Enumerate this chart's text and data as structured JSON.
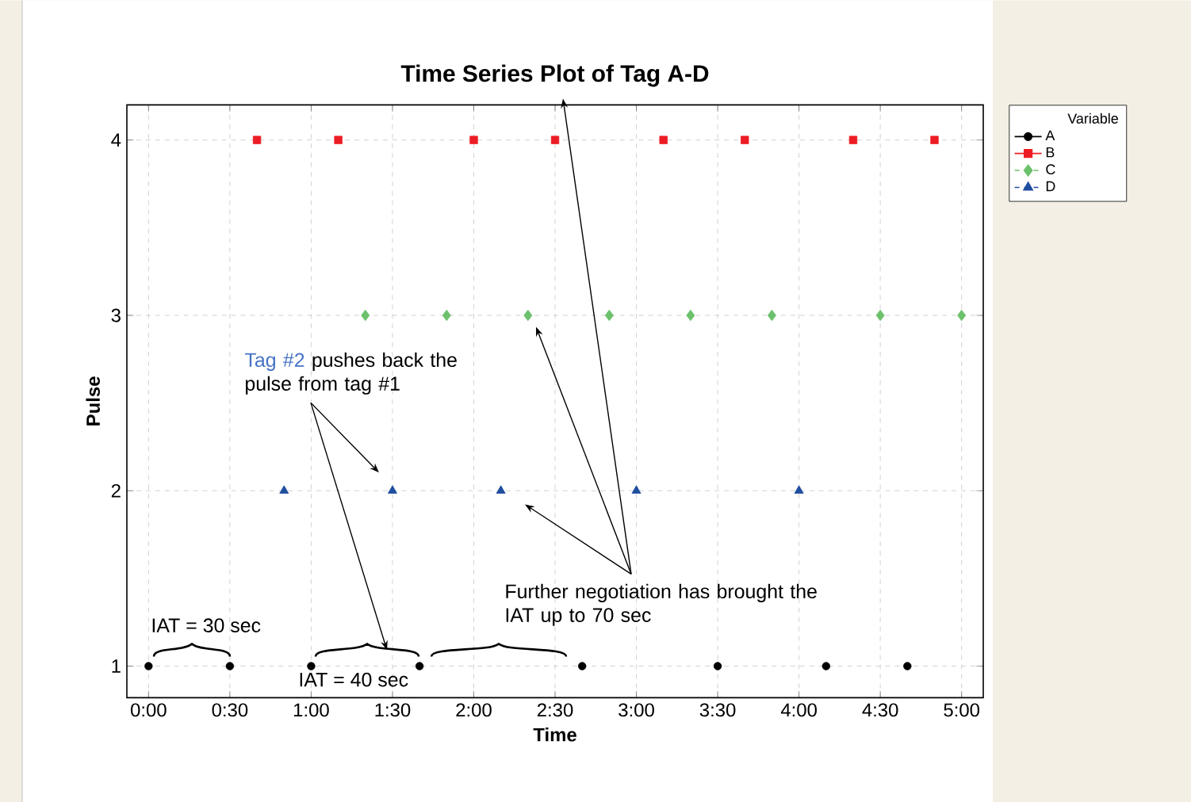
{
  "chart_data": {
    "type": "scatter",
    "title": "Time Series Plot of Tag A-D",
    "xlabel": "Time",
    "ylabel": "Pulse",
    "legend_title": "Variable",
    "legend": "right",
    "grid": true,
    "xlim": [
      -8,
      308
    ],
    "ylim": [
      0.82,
      4.2
    ],
    "xticks": [
      {
        "value": 0,
        "label": "0:00"
      },
      {
        "value": 30,
        "label": "0:30"
      },
      {
        "value": 60,
        "label": "1:00"
      },
      {
        "value": 90,
        "label": "1:30"
      },
      {
        "value": 120,
        "label": "2:00"
      },
      {
        "value": 150,
        "label": "2:30"
      },
      {
        "value": 180,
        "label": "3:00"
      },
      {
        "value": 210,
        "label": "3:30"
      },
      {
        "value": 240,
        "label": "4:00"
      },
      {
        "value": 270,
        "label": "4:30"
      },
      {
        "value": 300,
        "label": "5:00"
      }
    ],
    "yticks": [
      1,
      2,
      3,
      4
    ],
    "series": [
      {
        "name": "A",
        "color": "#000000",
        "marker": "circle",
        "line_style": "solid",
        "x": [
          0,
          30,
          60,
          100,
          160,
          210,
          250,
          280
        ],
        "values": [
          1,
          1,
          1,
          1,
          1,
          1,
          1,
          1
        ]
      },
      {
        "name": "B",
        "color": "#ed1c24",
        "marker": "square",
        "line_style": "solid",
        "x": [
          40,
          70,
          120,
          150,
          190,
          220,
          260,
          290
        ],
        "values": [
          4,
          4,
          4,
          4,
          4,
          4,
          4,
          4
        ]
      },
      {
        "name": "C",
        "color": "#6cc16c",
        "marker": "diamond",
        "line_style": "dashed",
        "x": [
          80,
          110,
          140,
          170,
          200,
          230,
          270,
          300
        ],
        "values": [
          3,
          3,
          3,
          3,
          3,
          3,
          3,
          3
        ]
      },
      {
        "name": "D",
        "color": "#1f4e9f",
        "marker": "triangle",
        "line_style": "dashed",
        "x": [
          50,
          90,
          130,
          180,
          240
        ],
        "values": [
          2,
          2,
          2,
          2,
          2
        ]
      }
    ],
    "annotations": [
      "Tag #2",
      "pushes back the pulse from tag #1",
      "Further negotiation has brought the IAT up to 70 sec",
      "IAT = 30 sec",
      "IAT = 40 sec"
    ]
  }
}
